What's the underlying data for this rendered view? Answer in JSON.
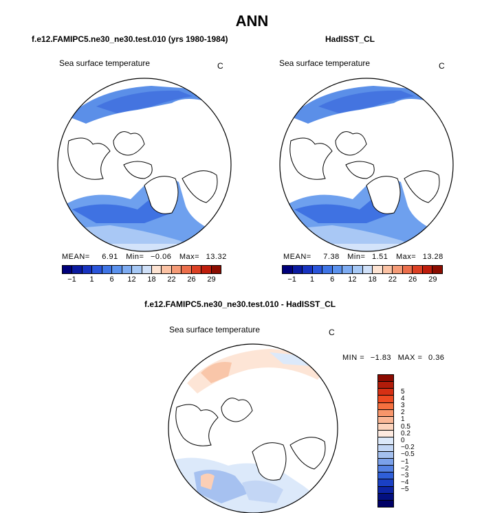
{
  "title": "ANN",
  "panels": [
    {
      "case": "f.e12.FAMIPC5.ne30_ne30.test.010 (yrs 1980-1984)",
      "field": "Sea surface temperature",
      "units": "C",
      "stats": {
        "mean_label": "MEAN=",
        "mean": "6.91",
        "min_label": "Min=",
        "min": "−0.06",
        "max_label": "Max=",
        "max": "13.32"
      }
    },
    {
      "case": "HadISST_CL",
      "field": "Sea surface temperature",
      "units": "C",
      "stats": {
        "mean_label": "MEAN=",
        "mean": "7.38",
        "min_label": "Min=",
        "min": "1.51",
        "max_label": "Max=",
        "max": "13.28"
      }
    }
  ],
  "abs_colorbar": {
    "colors": [
      "#00007a",
      "#0a1aa0",
      "#1733c0",
      "#2a55db",
      "#3f75e6",
      "#5b92ee",
      "#7eacf2",
      "#a6c8f5",
      "#cfe0f8",
      "#fde3d2",
      "#fbc2a4",
      "#f59b77",
      "#ec6f4c",
      "#dc4024",
      "#be1d0c",
      "#8a0c00"
    ],
    "ticks": [
      "−1",
      "1",
      "6",
      "12",
      "18",
      "22",
      "26",
      "29"
    ]
  },
  "diff_panel": {
    "title": "f.e12.FAMIPC5.ne30_ne30.test.010 - HadISST_CL",
    "field": "Sea surface temperature",
    "units": "C",
    "stats": {
      "min_label": "MIN =",
      "min": "−1.83",
      "max_label": "MAX =",
      "max": "0.36"
    }
  },
  "diff_colorbar": {
    "colors": [
      "#8b0a00",
      "#b11c0a",
      "#d63014",
      "#ee4b22",
      "#f5703f",
      "#f8966b",
      "#fab796",
      "#fcd4bd",
      "#fdeae0",
      "#dce9fa",
      "#c2d6f5",
      "#a4c0ef",
      "#7ba1ea",
      "#5481e3",
      "#2f5fd9",
      "#1a40c4",
      "#0d24a3",
      "#031080",
      "#000066"
    ],
    "ticks": [
      "5",
      "4",
      "3",
      "2",
      "1",
      "0.5",
      "0.2",
      "0",
      "−0.2",
      "−0.5",
      "−1",
      "−2",
      "−3",
      "−4",
      "−5"
    ]
  },
  "colors": {
    "land": "#ffffff",
    "coast": "#000000"
  }
}
